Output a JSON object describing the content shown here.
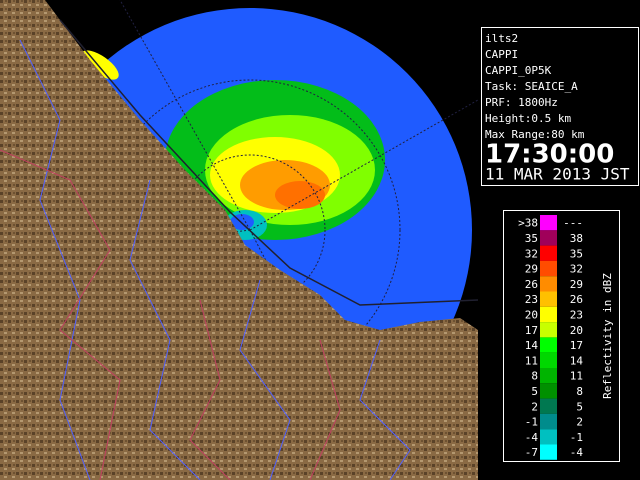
{
  "info": {
    "station": "ilts2",
    "product": "CAPPI",
    "product_name": "CAPPI_0P5K",
    "task": "Task: SEAICE_A",
    "prf": "PRF: 1800Hz",
    "height": "Height:0.5 km",
    "max_range": "Max Range:80 km",
    "time": "17:30:00",
    "date": "11 MAR 2013 JST"
  },
  "legend": {
    "title": "Reflectivity in dBZ",
    "rows": [
      {
        "low": ">38",
        "high": "---",
        "color": "#ff00ff"
      },
      {
        "low": "35",
        "high": "38",
        "color": "#a0005a"
      },
      {
        "low": "32",
        "high": "35",
        "color": "#ff0000"
      },
      {
        "low": "29",
        "high": "32",
        "color": "#ff4c00"
      },
      {
        "low": "26",
        "high": "29",
        "color": "#ff8c00"
      },
      {
        "low": "23",
        "high": "26",
        "color": "#ffc000"
      },
      {
        "low": "20",
        "high": "23",
        "color": "#ffff00"
      },
      {
        "low": "17",
        "high": "20",
        "color": "#c8ff00"
      },
      {
        "low": "14",
        "high": "17",
        "color": "#00ff00"
      },
      {
        "low": "11",
        "high": "14",
        "color": "#00d800"
      },
      {
        "low": "8",
        "high": "11",
        "color": "#00b400"
      },
      {
        "low": "5",
        "high": "8",
        "color": "#009000"
      },
      {
        "low": "2",
        "high": "5",
        "color": "#007850"
      },
      {
        "low": "-1",
        "high": "2",
        "color": "#008c8c"
      },
      {
        "low": "-4",
        "high": "-1",
        "color": "#00c0c0"
      },
      {
        "low": "-7",
        "high": "-4",
        "color": "#00ffff"
      }
    ]
  }
}
